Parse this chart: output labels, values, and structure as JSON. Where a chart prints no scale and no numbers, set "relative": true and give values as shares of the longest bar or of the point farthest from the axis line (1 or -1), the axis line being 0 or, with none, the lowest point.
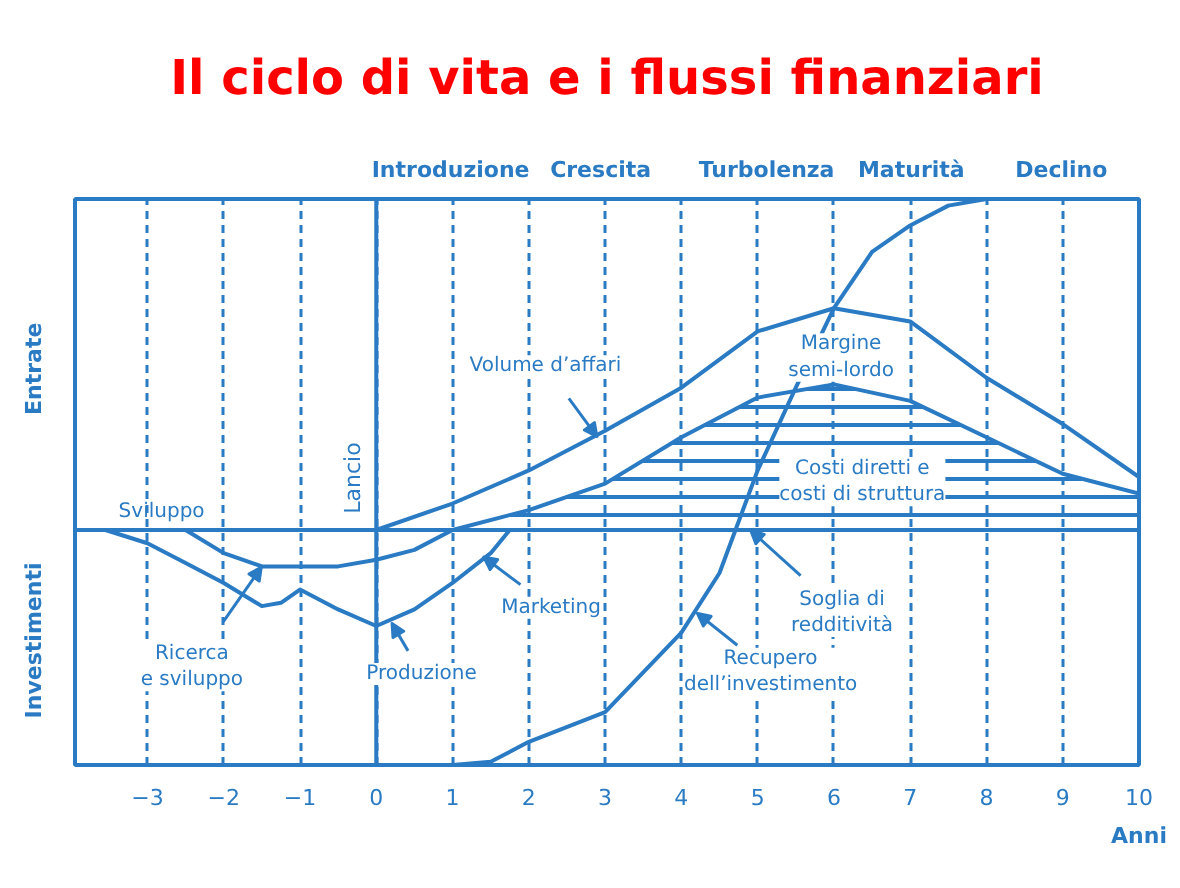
{
  "chart_data": {
    "type": "line",
    "title": "Il ciclo di vita e i flussi finanziari",
    "xlabel": "Anni",
    "relative": true,
    "xlim": [
      -3.95,
      10
    ],
    "xticks": [
      -3,
      -2,
      -1,
      0,
      1,
      2,
      3,
      4,
      5,
      6,
      7,
      8,
      9,
      10
    ],
    "grid": "x",
    "marker": "none",
    "line_style": "solid",
    "series": [
      {
        "color": "#2a7bc4",
        "x": [
          0,
          1,
          2,
          3,
          4,
          5,
          6,
          7,
          8,
          9,
          10
        ],
        "values": [
          0,
          0.08,
          0.18,
          0.3,
          0.43,
          0.6,
          0.67,
          0.63,
          0.46,
          0.32,
          0.16
        ]
      },
      {
        "type": "area",
        "color": "#2a7bc4",
        "x": [
          1,
          2,
          3,
          4,
          5,
          6,
          7,
          8,
          9,
          10
        ],
        "values": [
          0,
          0.06,
          0.14,
          0.28,
          0.4,
          0.44,
          0.39,
          0.28,
          0.17,
          0.11
        ]
      },
      {
        "color": "#2a7bc4",
        "x": [
          1,
          1.5,
          2,
          3,
          4,
          4.5,
          5,
          5.5,
          6,
          6.5,
          7,
          7.5,
          8
        ],
        "values": [
          -0.71,
          -0.7,
          -0.64,
          -0.55,
          -0.31,
          -0.13,
          0.18,
          0.43,
          0.67,
          0.84,
          0.92,
          0.98,
          1
        ]
      },
      {
        "color": "#2a7bc4",
        "x": [
          -2.5,
          -2,
          -1.5,
          -1,
          -0.5,
          0,
          0.5,
          1
        ],
        "values": [
          0,
          -0.07,
          -0.11,
          -0.11,
          -0.11,
          -0.09,
          -0.06,
          0
        ]
      },
      {
        "color": "#2a7bc4",
        "x": [
          -3.55,
          -3,
          -2.5,
          -2,
          -1.5,
          -1.25,
          -1,
          -0.5,
          0,
          0.5,
          1,
          1.5,
          1.75
        ],
        "values": [
          0,
          -0.04,
          -0.1,
          -0.16,
          -0.23,
          -0.22,
          -0.18,
          -0.24,
          -0.29,
          -0.24,
          -0.16,
          -0.07,
          0
        ]
      }
    ],
    "ref_lines": [
      {
        "axis": "y",
        "value": 0
      },
      {
        "axis": "x",
        "value": 0,
        "label": "Lancio"
      }
    ],
    "annotations": [
      "Introduzione",
      "Crescita",
      "Turbolenza",
      "Maturità",
      "Declino",
      "Entrate",
      "Investimenti",
      {
        "text": "Sviluppo",
        "x": -2.5,
        "y": 0
      },
      {
        "text": "Ricerca\ne sviluppo",
        "x": -1.5,
        "y": -0.11
      },
      {
        "text": "Produzione",
        "x": 0.2,
        "y": -0.28
      },
      {
        "text": "Marketing",
        "x": 1.4,
        "y": -0.08
      },
      {
        "text": "Volume d’affari",
        "x": 2.9,
        "y": 0.28
      },
      "Margine\nsemi-lordo",
      "Costi diretti e\ncosti di struttura",
      {
        "text": "Soglia di\nredditività",
        "x": 4.9,
        "y": 0
      },
      {
        "text": "Recupero\ndell’investimento",
        "x": 4.2,
        "y": -0.25
      }
    ]
  }
}
